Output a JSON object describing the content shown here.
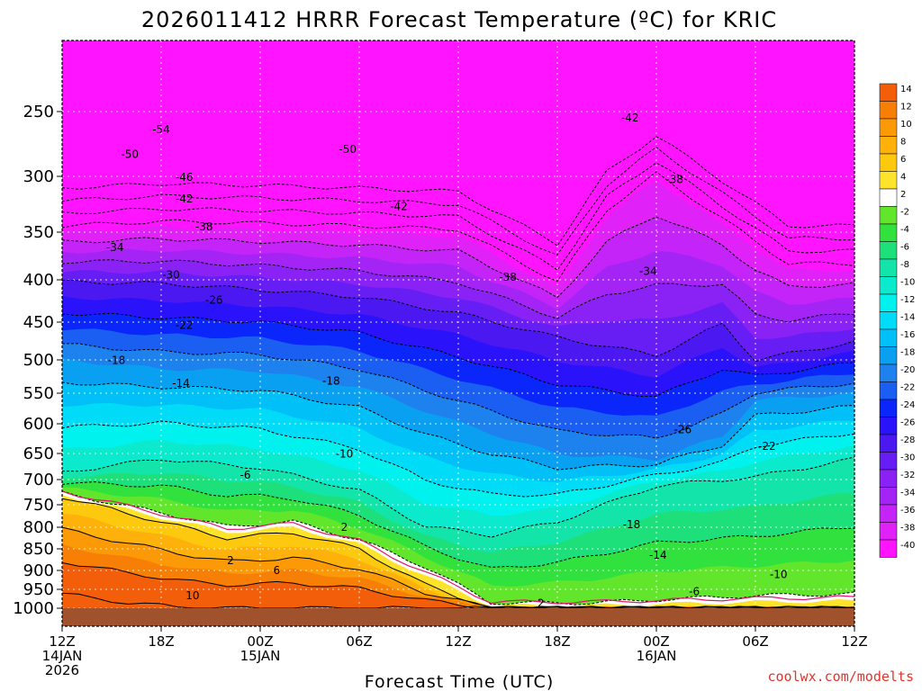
{
  "chart_data": {
    "type": "heatmap",
    "title": "2026011412 HRRR Forecast Temperature (ºC) for KRIC",
    "xlabel": "Forecast Time (UTC)",
    "ylabel": "",
    "credit": "coolwx.com/modelts",
    "y_ticks": [
      250,
      300,
      350,
      400,
      450,
      500,
      550,
      600,
      650,
      700,
      750,
      800,
      850,
      900,
      950,
      1000
    ],
    "ylim": [
      1000,
      200
    ],
    "x_ticks": [
      {
        "hour": 0,
        "line1": "12Z",
        "line2": "14JAN",
        "line3": "2026"
      },
      {
        "hour": 6,
        "line1": "18Z",
        "line2": "",
        "line3": ""
      },
      {
        "hour": 12,
        "line1": "00Z",
        "line2": "15JAN",
        "line3": ""
      },
      {
        "hour": 18,
        "line1": "06Z",
        "line2": "",
        "line3": ""
      },
      {
        "hour": 24,
        "line1": "12Z",
        "line2": "",
        "line3": ""
      },
      {
        "hour": 30,
        "line1": "18Z",
        "line2": "",
        "line3": ""
      },
      {
        "hour": 36,
        "line1": "00Z",
        "line2": "16JAN",
        "line3": ""
      },
      {
        "hour": 42,
        "line1": "06Z",
        "line2": "",
        "line3": ""
      },
      {
        "hour": 48,
        "line1": "12Z",
        "line2": "",
        "line3": ""
      }
    ],
    "xlim": [
      0,
      48
    ],
    "levels": [
      -40,
      -38,
      -36,
      -34,
      -32,
      -30,
      -28,
      -26,
      -24,
      -22,
      -20,
      -18,
      -16,
      -14,
      -12,
      -10,
      -8,
      -6,
      -4,
      -2,
      2,
      4,
      6,
      8,
      10,
      12,
      14
    ],
    "colorbar_labels": [
      "14",
      "12",
      "10",
      "8",
      "6",
      "4",
      "2",
      "-2",
      "-4",
      "-6",
      "-8",
      "-10",
      "-12",
      "-14",
      "-16",
      "-18",
      "-20",
      "-22",
      "-24",
      "-26",
      "-28",
      "-30",
      "-32",
      "-34",
      "-36",
      "-38",
      "-40"
    ],
    "colors": {
      "band_14": "#f25e0a",
      "band_12": "#f77f06",
      "band_10": "#fb9a06",
      "band_8": "#fdb10a",
      "band_6": "#fdc90f",
      "band_4": "#fde42a",
      "band_2": "#ffffff",
      "band_m2": "#62e62b",
      "band_m4": "#31e23f",
      "band_m6": "#1de07a",
      "band_m8": "#13e4a9",
      "band_m10": "#0ceacd",
      "band_m12": "#00f2ee",
      "band_m14": "#00dcf7",
      "band_m16": "#00c0f7",
      "band_m18": "#0aa0f2",
      "band_m20": "#1e82ee",
      "band_m22": "#1a5ef2",
      "band_m24": "#0a26fb",
      "band_m26": "#2a12fb",
      "band_m28": "#4c18f2",
      "band_m30": "#661ef4",
      "band_m32": "#8a22f6",
      "band_m34": "#a424f6",
      "band_m36": "#c424f8",
      "band_m38": "#e022f8",
      "band_m40": "#ff14ff",
      "ground": "#a0522d",
      "freezing_line": "#e0186c"
    },
    "contour_labels": [
      {
        "v": "-54",
        "h": 6.0,
        "p": 264
      },
      {
        "v": "-50",
        "h": 4.1,
        "p": 283
      },
      {
        "v": "-50",
        "h": 17.3,
        "p": 279
      },
      {
        "v": "-46",
        "h": 7.4,
        "p": 301
      },
      {
        "v": "-42",
        "h": 7.4,
        "p": 320
      },
      {
        "v": "-42",
        "h": 20.4,
        "p": 327
      },
      {
        "v": "-42",
        "h": 34.4,
        "p": 255
      },
      {
        "v": "-38",
        "h": 8.6,
        "p": 345
      },
      {
        "v": "-38",
        "h": 37.1,
        "p": 303
      },
      {
        "v": "-38",
        "h": 27.0,
        "p": 397
      },
      {
        "v": "-34",
        "h": 3.2,
        "p": 366
      },
      {
        "v": "-34",
        "h": 35.5,
        "p": 391
      },
      {
        "v": "-30",
        "h": 6.6,
        "p": 395
      },
      {
        "v": "-26",
        "h": 9.2,
        "p": 424
      },
      {
        "v": "-26",
        "h": 37.6,
        "p": 610
      },
      {
        "v": "-22",
        "h": 7.4,
        "p": 454
      },
      {
        "v": "-22",
        "h": 42.7,
        "p": 638
      },
      {
        "v": "-18",
        "h": 3.3,
        "p": 501
      },
      {
        "v": "-18",
        "h": 16.3,
        "p": 532
      },
      {
        "v": "-18",
        "h": 34.5,
        "p": 794
      },
      {
        "v": "-14",
        "h": 7.2,
        "p": 535
      },
      {
        "v": "-14",
        "h": 36.1,
        "p": 865
      },
      {
        "v": "-10",
        "h": 17.1,
        "p": 651
      },
      {
        "v": "-10",
        "h": 43.4,
        "p": 911
      },
      {
        "v": "-6",
        "h": 11.1,
        "p": 691
      },
      {
        "v": "-6",
        "h": 38.3,
        "p": 956
      },
      {
        "v": "2",
        "h": 17.1,
        "p": 800
      },
      {
        "v": "2",
        "h": 10.2,
        "p": 877
      },
      {
        "v": "2",
        "h": 29.0,
        "p": 987
      },
      {
        "v": "6",
        "h": 13.0,
        "p": 900
      },
      {
        "v": "10",
        "h": 7.9,
        "p": 967
      }
    ]
  }
}
